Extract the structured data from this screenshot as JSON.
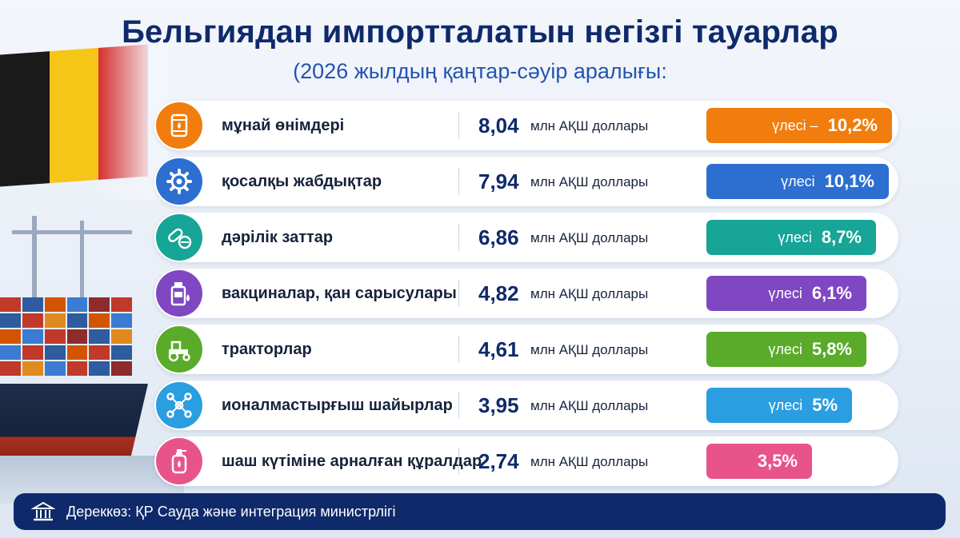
{
  "title": "Бельгиядан импортталатын негізгі тауарлар",
  "subtitle": "(2026 жылдың қаңтар-сәуір аралығы:",
  "unit_label": "млн АҚШ доллары",
  "rows": [
    {
      "name": "мұнай өнімдері",
      "value": "8,04",
      "share_label": "үлесі –",
      "share": "10,2%",
      "color": "#f07d0e",
      "icon": "oil-barrel-icon",
      "bar_width": 232
    },
    {
      "name": "қосалқы жабдықтар",
      "value": "7,94",
      "share_label": "үлесі",
      "share": "10,1%",
      "color": "#2c6fd0",
      "icon": "gear-icon",
      "bar_width": 228
    },
    {
      "name": "дәрілік заттар",
      "value": "6,86",
      "share_label": "үлесі",
      "share": "8,7%",
      "color": "#16a596",
      "icon": "pills-icon",
      "bar_width": 212
    },
    {
      "name": "вакциналар, қан сарысулары",
      "value": "4,82",
      "share_label": "үлесі",
      "share": "6,1%",
      "color": "#7f47c2",
      "icon": "vaccine-vial-icon",
      "bar_width": 200
    },
    {
      "name": "тракторлар",
      "value": "4,61",
      "share_label": "үлесі",
      "share": "5,8%",
      "color": "#5aab2a",
      "icon": "tractor-icon",
      "bar_width": 200
    },
    {
      "name": "ионалмастырғыш шайырлар",
      "value": "3,95",
      "share_label": "үлесі",
      "share": "5%",
      "color": "#2a9ee0",
      "icon": "molecule-icon",
      "bar_width": 182
    },
    {
      "name": "шаш күтіміне арналған құралдар",
      "value": "2,74",
      "share_label": "",
      "share": "3,5%",
      "color": "#e8548a",
      "icon": "shampoo-bottle-icon",
      "bar_width": 132
    }
  ],
  "footer": "Дереккөз: ҚР Сауда және интеграция министрлігі"
}
